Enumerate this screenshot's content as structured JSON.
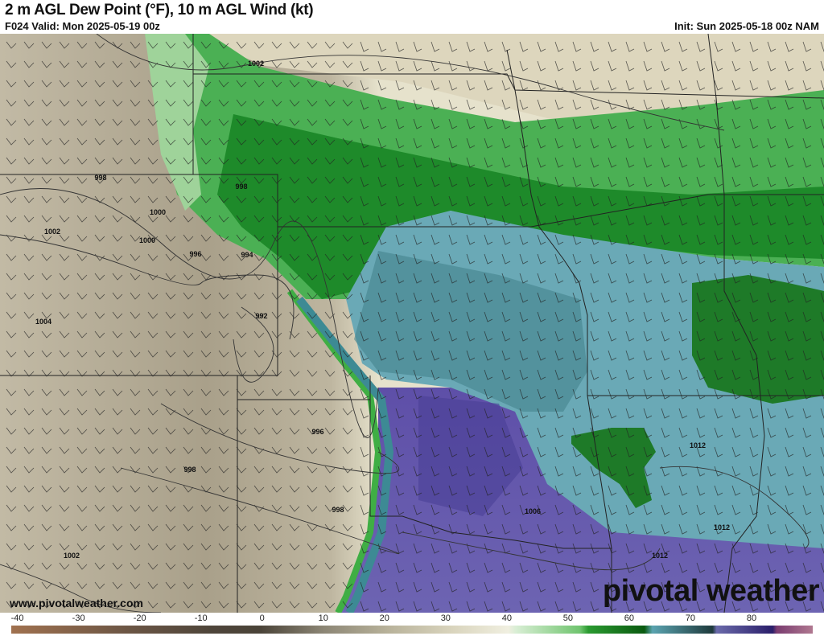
{
  "header": {
    "title": "2 m AGL Dew Point (°F), 10 m AGL Wind (kt)",
    "valid": "F024 Valid: Mon 2025-05-19 00z",
    "init": "Init: Sun 2025-05-18 00z NAM"
  },
  "map": {
    "isobar_labels": [
      "1002",
      "998",
      "998",
      "1000",
      "1002",
      "1000",
      "996",
      "994",
      "992",
      "1004",
      "996",
      "998",
      "998",
      "1006",
      "1012",
      "1012",
      "1002",
      "1012"
    ],
    "colors": {
      "dry_tan": "#b3aa94",
      "light_tan": "#ddd8c2",
      "green": "#3fa548",
      "dark_green": "#1b7a25",
      "teal": "#6aa9b6",
      "dark_teal": "#3f7f88",
      "purple": "#6a5fae"
    }
  },
  "watermark": "www.pivotalweather.com",
  "logo": "pivotal weather",
  "colorbar": {
    "ticks": [
      "-40",
      "-30",
      "-20",
      "-10",
      "0",
      "10",
      "20",
      "30",
      "40",
      "50",
      "60",
      "70",
      "80"
    ],
    "range": [
      -41,
      90
    ],
    "unit": "°F"
  }
}
